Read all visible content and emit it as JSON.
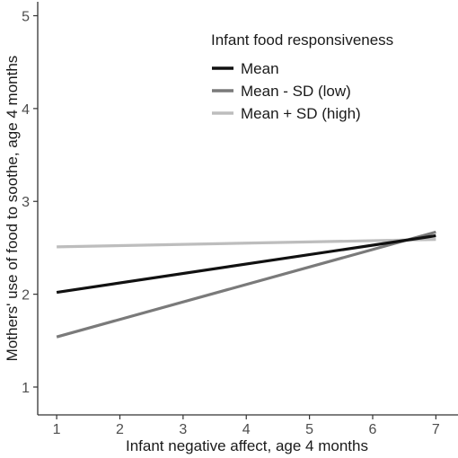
{
  "chart_data": {
    "type": "line",
    "xlabel": "Infant  negative affect, age 4 months",
    "ylabel": "Mothers' use of food to soothe, age 4 months",
    "xlim": [
      0.7,
      7.35
    ],
    "ylim": [
      0.7,
      5.15
    ],
    "x_ticks": [
      1,
      2,
      3,
      4,
      5,
      6,
      7
    ],
    "y_ticks": [
      1,
      2,
      3,
      4,
      5
    ],
    "grid": false,
    "legend_title": "Infant food responsiveness",
    "legend_position": "top-right",
    "series": [
      {
        "name": "Mean",
        "color": "#111111",
        "x": [
          1,
          7
        ],
        "y": [
          2.02,
          2.63
        ]
      },
      {
        "name": "Mean - SD (low)",
        "color": "#7a7a7a",
        "x": [
          1,
          7
        ],
        "y": [
          1.54,
          2.67
        ]
      },
      {
        "name": "Mean + SD (high)",
        "color": "#bdbdbd",
        "x": [
          1,
          7
        ],
        "y": [
          2.51,
          2.59
        ]
      }
    ]
  }
}
